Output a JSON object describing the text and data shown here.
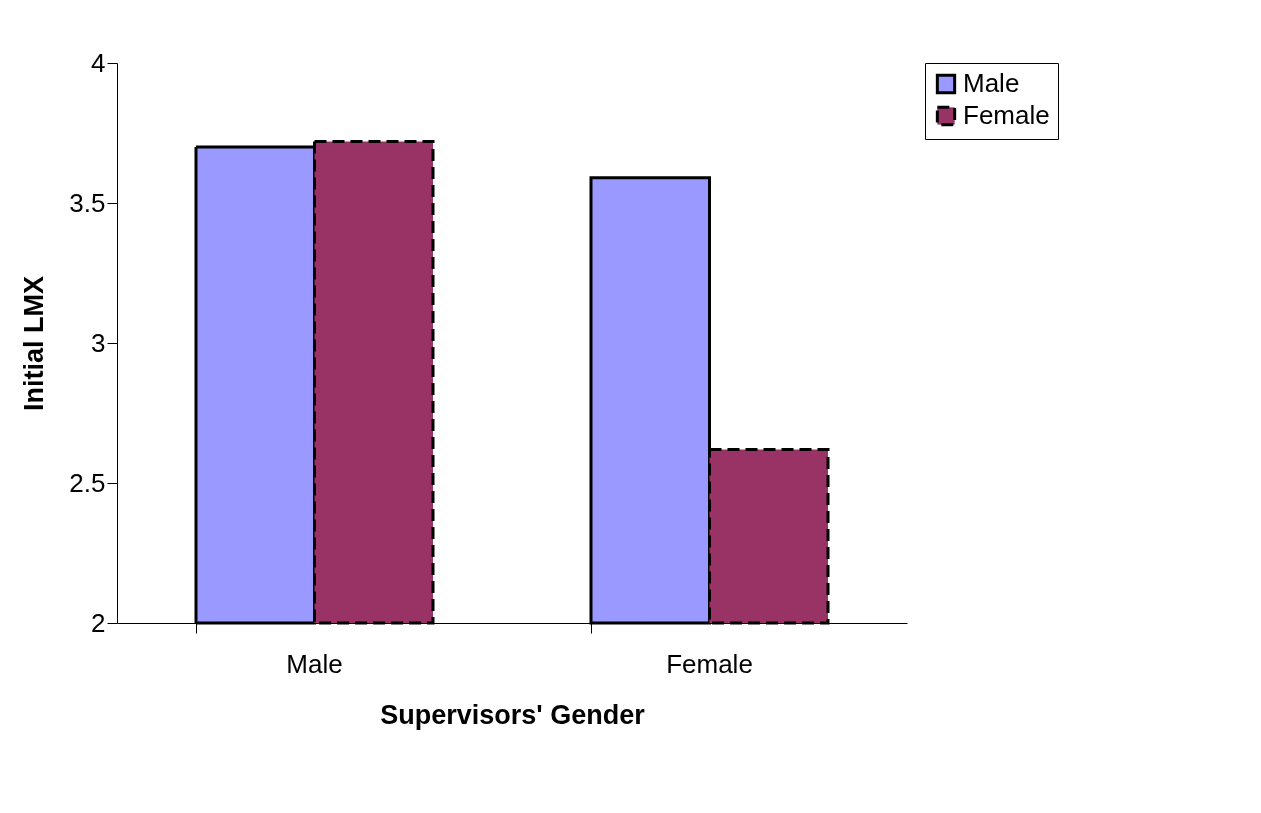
{
  "chart_data": {
    "type": "bar",
    "xlabel": "Supervisors' Gender",
    "ylabel": "Initial LMX",
    "categories": [
      "Male",
      "Female"
    ],
    "series": [
      {
        "name": "Male",
        "color": "#9999ff",
        "values": [
          3.7,
          3.59
        ],
        "line_style": "solid"
      },
      {
        "name": "Female",
        "color": "#993366",
        "values": [
          3.72,
          2.62
        ],
        "line_style": "dashed"
      }
    ],
    "ylim": [
      2,
      4
    ],
    "yticks": [
      2,
      2.5,
      3,
      3.5,
      4
    ],
    "grid": false,
    "legend": "right"
  }
}
